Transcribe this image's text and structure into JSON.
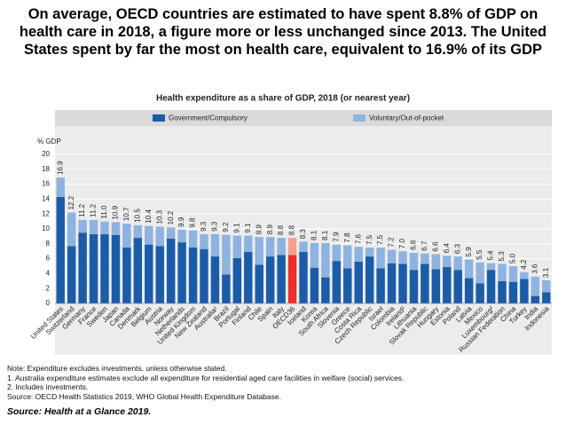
{
  "headline": "On average, OECD countries are estimated to have spent 8.8% of GDP on health care in 2018, a figure more or less unchanged since 2013. The United States spent by far the most on health care, equivalent to 16.9% of its GDP",
  "chart_data": {
    "type": "stacked_bar",
    "title": "Health expenditure as a share of GDP, 2018 (or nearest year)",
    "y_label": "% GDP",
    "categories": [
      "United States",
      "Switzerland",
      "Germany",
      "France",
      "Sweden",
      "Japan",
      "Canada",
      "Denmark",
      "Belgium",
      "Austria",
      "Norway",
      "Netherlands",
      "United Kingdom",
      "New Zealand",
      "Australia¹",
      "Brazil",
      "Portugal",
      "Finland",
      "Chile",
      "Spain",
      "Italy",
      "OECD36",
      "Iceland",
      "Korea",
      "South Africa",
      "Slovenia",
      "Greece",
      "Costa Rica",
      "Czech Republic",
      "Israel",
      "Colombia",
      "Ireland²",
      "Lithuania",
      "Slovak Republic",
      "Hungary",
      "Estonia",
      "Poland",
      "Latvia",
      "Mexico",
      "Luxembourg²",
      "Russian Federation",
      "China",
      "Turkey",
      "India",
      "Indonesia"
    ],
    "series": [
      {
        "name": "Government/Compulsory",
        "color": "#1b5ca8",
        "values": [
          14.3,
          7.7,
          9.5,
          9.3,
          9.3,
          9.2,
          7.5,
          8.8,
          7.9,
          7.7,
          8.7,
          8.2,
          7.5,
          7.3,
          6.3,
          3.9,
          6.1,
          6.9,
          5.2,
          6.3,
          6.5,
          6.5,
          6.9,
          4.8,
          3.5,
          5.7,
          4.7,
          5.6,
          6.3,
          4.7,
          5.4,
          5.3,
          4.5,
          5.3,
          4.6,
          4.9,
          4.5,
          3.4,
          2.7,
          4.5,
          3.0,
          2.9,
          3.3,
          1.0,
          1.5
        ]
      },
      {
        "name": "Voluntary/Out-of-pocket",
        "color": "#8fb3e0",
        "values": [
          2.6,
          4.5,
          1.7,
          1.9,
          1.7,
          1.7,
          3.2,
          1.7,
          2.5,
          2.6,
          1.5,
          1.7,
          2.3,
          2.0,
          3.0,
          5.3,
          3.0,
          2.2,
          3.7,
          2.6,
          2.3,
          2.3,
          1.4,
          3.3,
          4.6,
          2.2,
          3.1,
          2.0,
          1.2,
          2.8,
          1.8,
          1.7,
          2.3,
          1.4,
          2.0,
          1.5,
          1.8,
          2.5,
          2.8,
          0.9,
          2.3,
          2.1,
          0.9,
          2.6,
          1.6
        ]
      }
    ],
    "totals": [
      16.9,
      12.2,
      11.2,
      11.2,
      11.0,
      10.9,
      10.7,
      10.5,
      10.4,
      10.3,
      10.2,
      9.9,
      9.8,
      9.3,
      9.3,
      9.2,
      9.1,
      9.1,
      8.9,
      8.9,
      8.8,
      8.8,
      8.3,
      8.1,
      8.1,
      7.9,
      7.8,
      7.6,
      7.5,
      7.5,
      7.2,
      7.0,
      6.8,
      6.7,
      6.6,
      6.4,
      6.3,
      5.9,
      5.5,
      5.4,
      5.3,
      5.0,
      4.2,
      3.6,
      3.1
    ],
    "total_labels": [
      "16.9",
      "12.2",
      "11.2",
      "11.2",
      "11.0",
      "10.9",
      "10.7",
      "10.5",
      "10.4",
      "10.3",
      "10.2",
      "9.9",
      "9.8",
      "9.3",
      "9.3",
      "9.2",
      "9.1",
      "9.1",
      "8.9",
      "8.9",
      "8.8",
      "8.8",
      "8.3",
      "8.1",
      "8.1",
      "7.9",
      "7.8",
      "7.6",
      "7.5",
      "7.5",
      "7.2",
      "7.0",
      "6.8",
      "6.7",
      "6.6",
      "6.4",
      "6.3",
      "5.9",
      "5.5",
      "5.4",
      "5.3",
      "5.0",
      "4.2",
      "3.6",
      "3.1"
    ],
    "highlight_category": "OECD36",
    "highlight_colors": [
      "#e8302c",
      "#f5a08a"
    ],
    "ylim": [
      0,
      20
    ],
    "yticks": [
      0,
      2,
      4,
      6,
      8,
      10,
      12,
      14,
      16,
      18,
      20
    ],
    "grid": true
  },
  "notes": [
    "Note: Expenditure excludes investments, unless otherwise stated.",
    "1.  Australia expenditure estimates exclude all expenditure for residential aged care facilities in welfare (social) services.",
    "2.  Includes investments.",
    "Source: OECD Health Statistics 2019, WHO Global Health Expenditure Database."
  ],
  "source": "Source: Health at a Glance 2019."
}
